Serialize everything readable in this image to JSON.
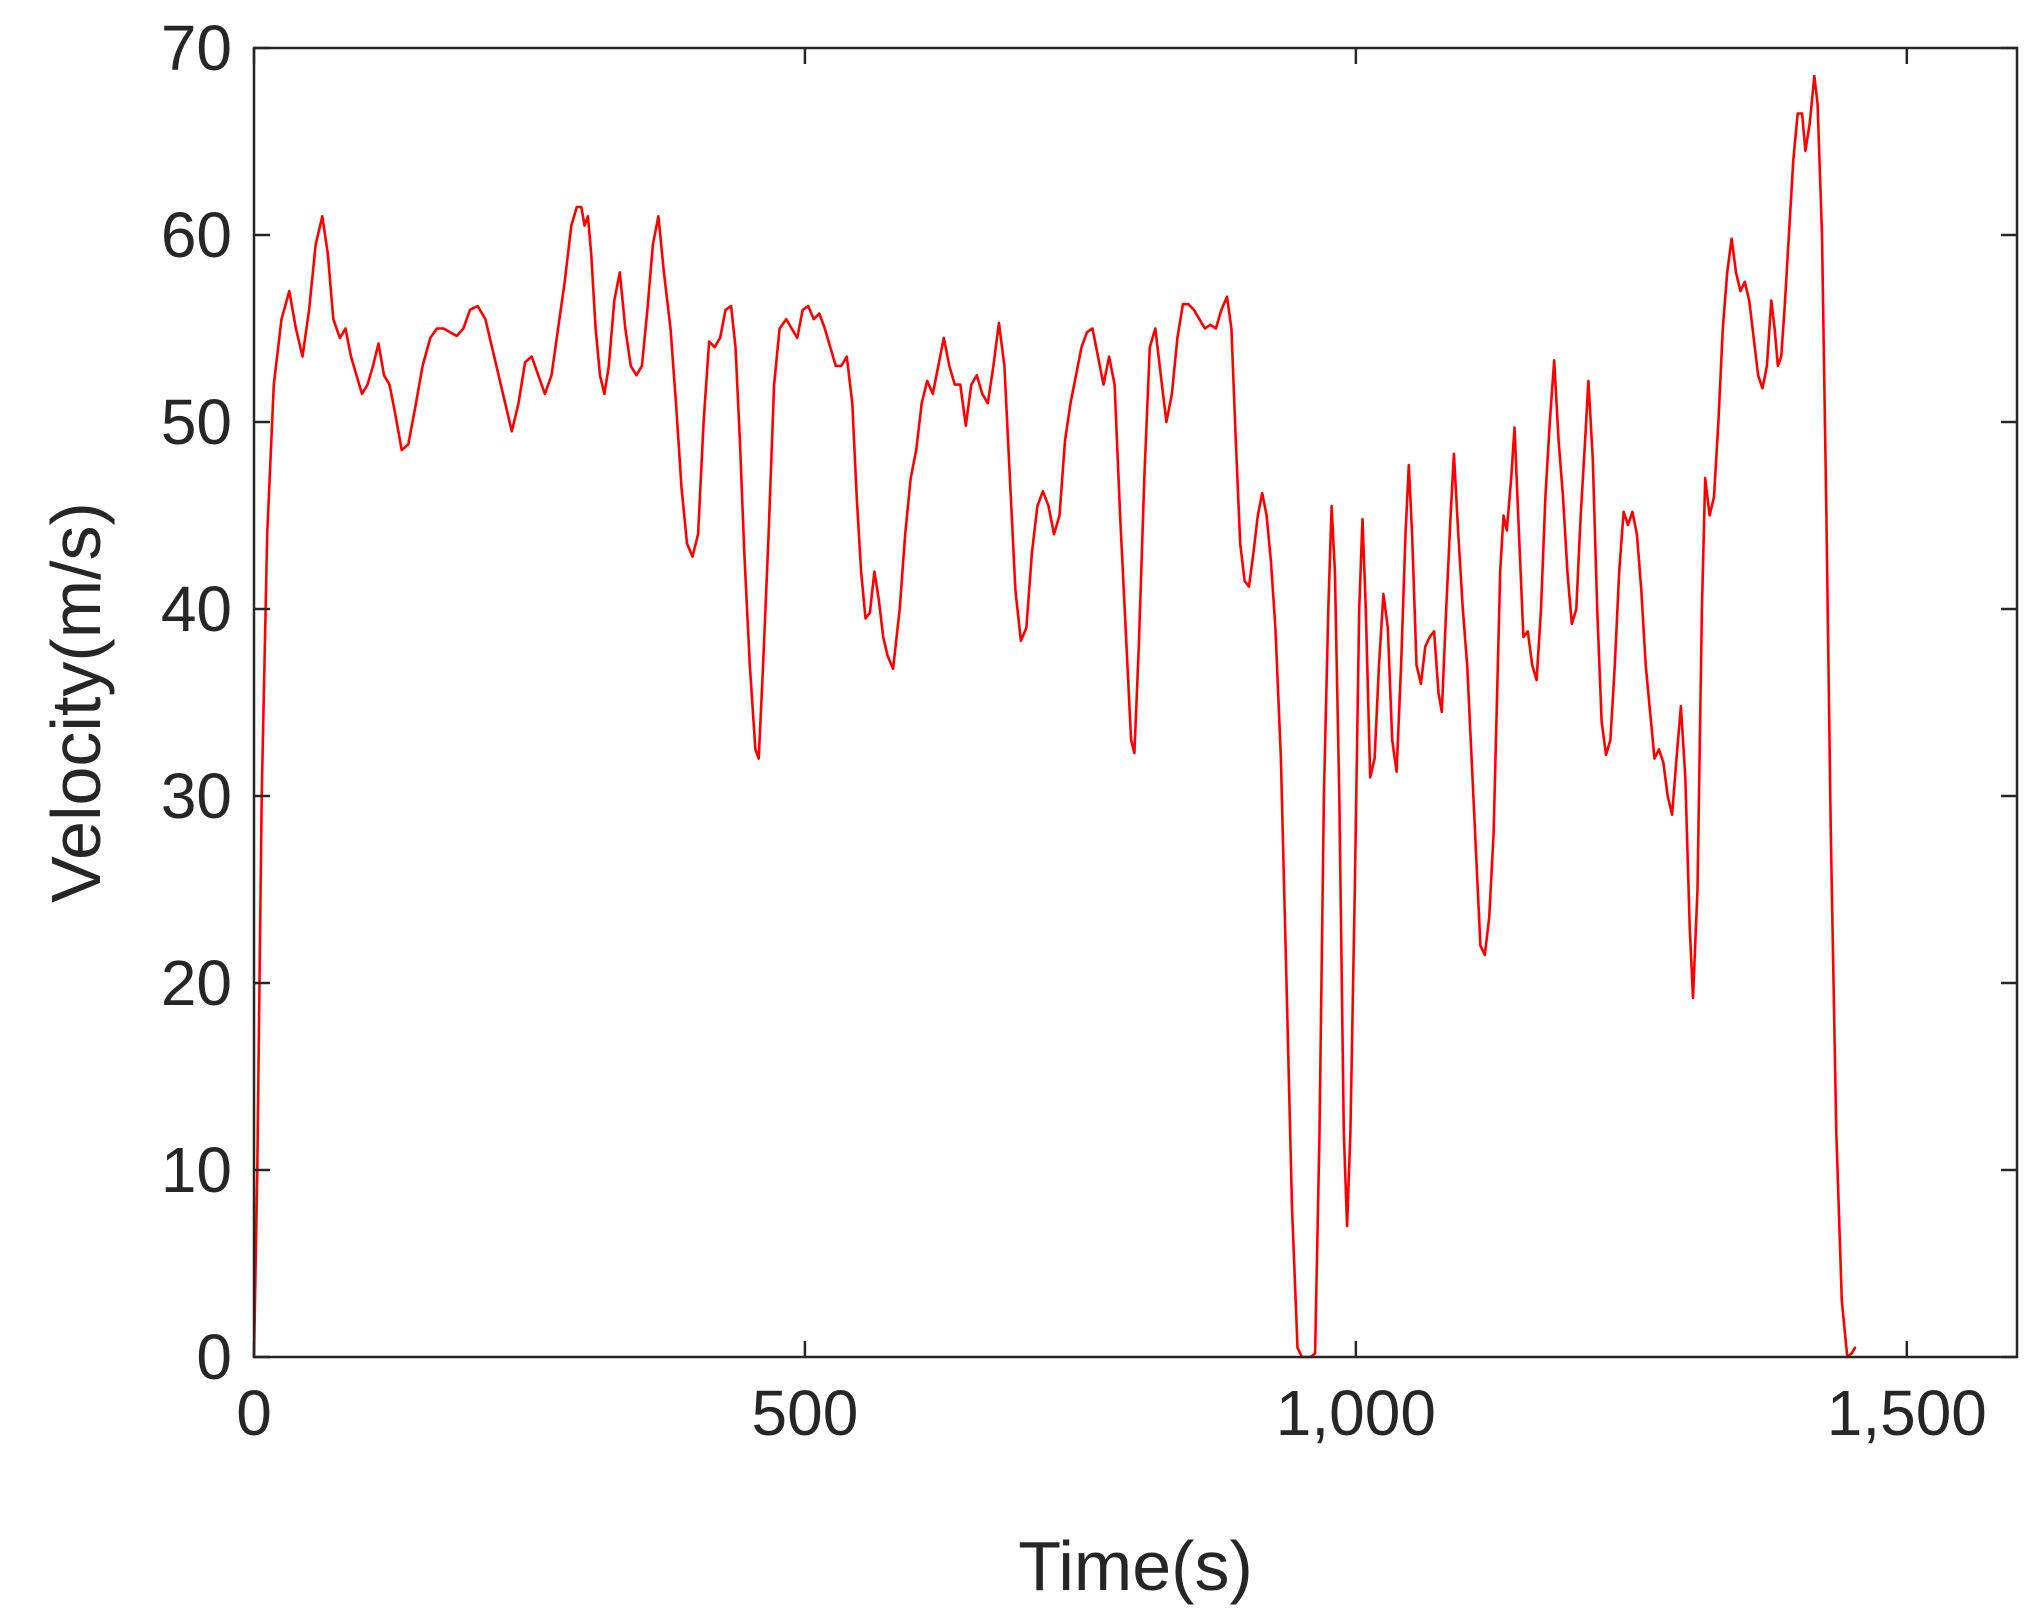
{
  "chart_data": {
    "type": "line",
    "xlabel": "Time(s)",
    "ylabel": "Velocity(m/s)",
    "xlim": [
      0,
      1600
    ],
    "ylim": [
      0,
      70
    ],
    "x_ticks": [
      0,
      500,
      1000,
      1500
    ],
    "x_tick_labels": [
      "0",
      "500",
      "1,000",
      "1,500"
    ],
    "y_ticks": [
      0,
      10,
      20,
      30,
      40,
      50,
      60,
      70
    ],
    "y_tick_labels": [
      "0",
      "10",
      "20",
      "30",
      "40",
      "50",
      "60",
      "70"
    ],
    "grid": false,
    "box": true,
    "series": [
      {
        "color": "#ff0000",
        "points": [
          [
            0,
            0
          ],
          [
            3,
            10
          ],
          [
            7,
            30
          ],
          [
            12,
            44
          ],
          [
            18,
            52
          ],
          [
            25,
            55.5
          ],
          [
            32,
            57
          ],
          [
            38,
            55
          ],
          [
            44,
            53.5
          ],
          [
            50,
            56
          ],
          [
            56,
            59.5
          ],
          [
            62,
            61
          ],
          [
            67,
            59
          ],
          [
            72,
            55.5
          ],
          [
            78,
            54.5
          ],
          [
            83,
            55
          ],
          [
            88,
            53.5
          ],
          [
            93,
            52.5
          ],
          [
            98,
            51.5
          ],
          [
            103,
            52
          ],
          [
            108,
            53
          ],
          [
            113,
            54.2
          ],
          [
            118,
            52.5
          ],
          [
            123,
            52
          ],
          [
            128,
            50.5
          ],
          [
            134,
            48.5
          ],
          [
            140,
            48.8
          ],
          [
            147,
            51
          ],
          [
            153,
            53
          ],
          [
            160,
            54.5
          ],
          [
            166,
            55
          ],
          [
            172,
            55
          ],
          [
            178,
            54.8
          ],
          [
            184,
            54.6
          ],
          [
            190,
            55
          ],
          [
            196,
            56
          ],
          [
            203,
            56.2
          ],
          [
            210,
            55.5
          ],
          [
            216,
            54
          ],
          [
            222,
            52.5
          ],
          [
            228,
            51
          ],
          [
            234,
            49.5
          ],
          [
            240,
            51
          ],
          [
            246,
            53.2
          ],
          [
            252,
            53.5
          ],
          [
            258,
            52.5
          ],
          [
            264,
            51.5
          ],
          [
            270,
            52.5
          ],
          [
            276,
            55
          ],
          [
            282,
            57.5
          ],
          [
            288,
            60.5
          ],
          [
            293,
            61.5
          ],
          [
            297,
            61.5
          ],
          [
            300,
            60.5
          ],
          [
            303,
            61
          ],
          [
            306,
            59
          ],
          [
            310,
            55
          ],
          [
            314,
            52.5
          ],
          [
            318,
            51.5
          ],
          [
            322,
            53
          ],
          [
            327,
            56.5
          ],
          [
            332,
            58
          ],
          [
            337,
            55
          ],
          [
            342,
            53
          ],
          [
            347,
            52.5
          ],
          [
            352,
            53
          ],
          [
            357,
            56
          ],
          [
            362,
            59.5
          ],
          [
            367,
            61
          ],
          [
            372,
            58
          ],
          [
            378,
            55
          ],
          [
            383,
            51
          ],
          [
            388,
            46.5
          ],
          [
            393,
            43.5
          ],
          [
            398,
            42.8
          ],
          [
            403,
            44
          ],
          [
            408,
            50
          ],
          [
            413,
            54.3
          ],
          [
            418,
            54
          ],
          [
            423,
            54.5
          ],
          [
            428,
            56
          ],
          [
            433,
            56.2
          ],
          [
            437,
            54
          ],
          [
            441,
            49
          ],
          [
            445,
            43
          ],
          [
            450,
            37
          ],
          [
            455,
            32.5
          ],
          [
            458,
            32
          ],
          [
            462,
            37
          ],
          [
            467,
            44
          ],
          [
            472,
            52
          ],
          [
            477,
            55
          ],
          [
            483,
            55.5
          ],
          [
            488,
            55
          ],
          [
            493,
            54.5
          ],
          [
            498,
            56
          ],
          [
            503,
            56.2
          ],
          [
            508,
            55.5
          ],
          [
            513,
            55.8
          ],
          [
            518,
            55
          ],
          [
            523,
            54
          ],
          [
            528,
            53
          ],
          [
            533,
            53
          ],
          [
            538,
            53.5
          ],
          [
            543,
            51
          ],
          [
            547,
            46
          ],
          [
            551,
            42
          ],
          [
            555,
            39.5
          ],
          [
            559,
            39.8
          ],
          [
            563,
            42
          ],
          [
            567,
            40.5
          ],
          [
            571,
            38.5
          ],
          [
            575,
            37.5
          ],
          [
            580,
            36.8
          ],
          [
            586,
            40
          ],
          [
            591,
            44
          ],
          [
            596,
            47
          ],
          [
            601,
            48.5
          ],
          [
            606,
            51
          ],
          [
            611,
            52.2
          ],
          [
            616,
            51.5
          ],
          [
            621,
            53
          ],
          [
            626,
            54.5
          ],
          [
            631,
            53
          ],
          [
            636,
            52
          ],
          [
            641,
            52
          ],
          [
            646,
            49.8
          ],
          [
            651,
            52
          ],
          [
            656,
            52.5
          ],
          [
            661,
            51.5
          ],
          [
            666,
            51
          ],
          [
            671,
            53
          ],
          [
            676,
            55.3
          ],
          [
            681,
            53
          ],
          [
            686,
            47
          ],
          [
            691,
            41
          ],
          [
            696,
            38.3
          ],
          [
            701,
            39
          ],
          [
            706,
            43
          ],
          [
            711,
            45.5
          ],
          [
            716,
            46.3
          ],
          [
            721,
            45.5
          ],
          [
            726,
            44
          ],
          [
            731,
            45
          ],
          [
            736,
            49
          ],
          [
            741,
            51
          ],
          [
            746,
            52.5
          ],
          [
            751,
            54
          ],
          [
            756,
            54.8
          ],
          [
            761,
            55
          ],
          [
            766,
            53.5
          ],
          [
            771,
            52
          ],
          [
            776,
            53.5
          ],
          [
            781,
            52
          ],
          [
            786,
            45
          ],
          [
            791,
            39
          ],
          [
            796,
            33
          ],
          [
            799,
            32.3
          ],
          [
            803,
            38
          ],
          [
            808,
            47
          ],
          [
            813,
            54
          ],
          [
            818,
            55
          ],
          [
            823,
            52.5
          ],
          [
            828,
            50
          ],
          [
            833,
            51.5
          ],
          [
            838,
            54.5
          ],
          [
            843,
            56.3
          ],
          [
            848,
            56.3
          ],
          [
            853,
            56
          ],
          [
            858,
            55.5
          ],
          [
            863,
            55
          ],
          [
            868,
            55.2
          ],
          [
            873,
            55
          ],
          [
            878,
            56
          ],
          [
            883,
            56.7
          ],
          [
            887,
            55
          ],
          [
            891,
            49
          ],
          [
            895,
            43.5
          ],
          [
            899,
            41.5
          ],
          [
            903,
            41.2
          ],
          [
            907,
            43
          ],
          [
            911,
            45
          ],
          [
            915,
            46.2
          ],
          [
            919,
            45
          ],
          [
            923,
            42.5
          ],
          [
            927,
            39
          ],
          [
            932,
            32
          ],
          [
            937,
            20
          ],
          [
            942,
            8
          ],
          [
            947,
            0.5
          ],
          [
            951,
            0
          ],
          [
            955,
            0
          ],
          [
            959,
            0
          ],
          [
            963,
            0.2
          ],
          [
            967,
            12
          ],
          [
            971,
            30
          ],
          [
            975,
            40
          ],
          [
            978,
            45.5
          ],
          [
            981,
            42
          ],
          [
            985,
            30
          ],
          [
            989,
            12
          ],
          [
            992,
            7
          ],
          [
            995,
            12
          ],
          [
            999,
            25
          ],
          [
            1003,
            40
          ],
          [
            1006,
            44.8
          ],
          [
            1009,
            40
          ],
          [
            1013,
            31
          ],
          [
            1017,
            32
          ],
          [
            1021,
            37
          ],
          [
            1025,
            40.8
          ],
          [
            1029,
            39
          ],
          [
            1033,
            33
          ],
          [
            1037,
            31.3
          ],
          [
            1041,
            37
          ],
          [
            1045,
            44
          ],
          [
            1048,
            47.7
          ],
          [
            1051,
            44
          ],
          [
            1055,
            37
          ],
          [
            1059,
            36
          ],
          [
            1063,
            38
          ],
          [
            1067,
            38.5
          ],
          [
            1071,
            38.8
          ],
          [
            1075,
            35.5
          ],
          [
            1078,
            34.5
          ],
          [
            1082,
            40
          ],
          [
            1086,
            45
          ],
          [
            1089,
            48.3
          ],
          [
            1093,
            44
          ],
          [
            1097,
            40
          ],
          [
            1101,
            37
          ],
          [
            1105,
            32
          ],
          [
            1109,
            27
          ],
          [
            1113,
            22
          ],
          [
            1117,
            21.5
          ],
          [
            1121,
            23.5
          ],
          [
            1125,
            28
          ],
          [
            1128,
            35
          ],
          [
            1131,
            42
          ],
          [
            1134,
            45
          ],
          [
            1137,
            44.2
          ],
          [
            1141,
            47
          ],
          [
            1144,
            49.7
          ],
          [
            1148,
            44
          ],
          [
            1152,
            38.5
          ],
          [
            1156,
            38.8
          ],
          [
            1160,
            37
          ],
          [
            1164,
            36.2
          ],
          [
            1168,
            40
          ],
          [
            1172,
            46
          ],
          [
            1176,
            50
          ],
          [
            1180,
            53.3
          ],
          [
            1184,
            49
          ],
          [
            1188,
            46
          ],
          [
            1192,
            42
          ],
          [
            1196,
            39.2
          ],
          [
            1200,
            40
          ],
          [
            1204,
            45
          ],
          [
            1208,
            49
          ],
          [
            1211,
            52.2
          ],
          [
            1215,
            48
          ],
          [
            1219,
            40
          ],
          [
            1223,
            34
          ],
          [
            1227,
            32.2
          ],
          [
            1231,
            33
          ],
          [
            1235,
            37
          ],
          [
            1239,
            42
          ],
          [
            1243,
            45.2
          ],
          [
            1247,
            44.5
          ],
          [
            1251,
            45.2
          ],
          [
            1255,
            44
          ],
          [
            1259,
            41
          ],
          [
            1263,
            37
          ],
          [
            1267,
            34.5
          ],
          [
            1271,
            32
          ],
          [
            1275,
            32.5
          ],
          [
            1279,
            31.8
          ],
          [
            1283,
            30
          ],
          [
            1287,
            29
          ],
          [
            1291,
            32
          ],
          [
            1295,
            34.8
          ],
          [
            1299,
            31
          ],
          [
            1303,
            23
          ],
          [
            1306,
            19.2
          ],
          [
            1310,
            25
          ],
          [
            1314,
            40
          ],
          [
            1317,
            47
          ],
          [
            1321,
            45
          ],
          [
            1325,
            46
          ],
          [
            1329,
            50
          ],
          [
            1333,
            55
          ],
          [
            1337,
            58
          ],
          [
            1341,
            59.8
          ],
          [
            1345,
            58
          ],
          [
            1349,
            57
          ],
          [
            1353,
            57.5
          ],
          [
            1357,
            56.5
          ],
          [
            1361,
            54.5
          ],
          [
            1365,
            52.5
          ],
          [
            1369,
            51.8
          ],
          [
            1373,
            53
          ],
          [
            1377,
            56.5
          ],
          [
            1380,
            55
          ],
          [
            1383,
            53
          ],
          [
            1386,
            53.5
          ],
          [
            1389,
            56
          ],
          [
            1393,
            60
          ],
          [
            1397,
            64
          ],
          [
            1401,
            66.5
          ],
          [
            1405,
            66.5
          ],
          [
            1408,
            64.5
          ],
          [
            1412,
            66
          ],
          [
            1416,
            68.5
          ],
          [
            1419,
            67
          ],
          [
            1423,
            60
          ],
          [
            1427,
            45
          ],
          [
            1431,
            28
          ],
          [
            1436,
            12
          ],
          [
            1441,
            3
          ],
          [
            1446,
            0
          ],
          [
            1450,
            0.2
          ],
          [
            1453,
            0.5
          ]
        ]
      }
    ]
  }
}
